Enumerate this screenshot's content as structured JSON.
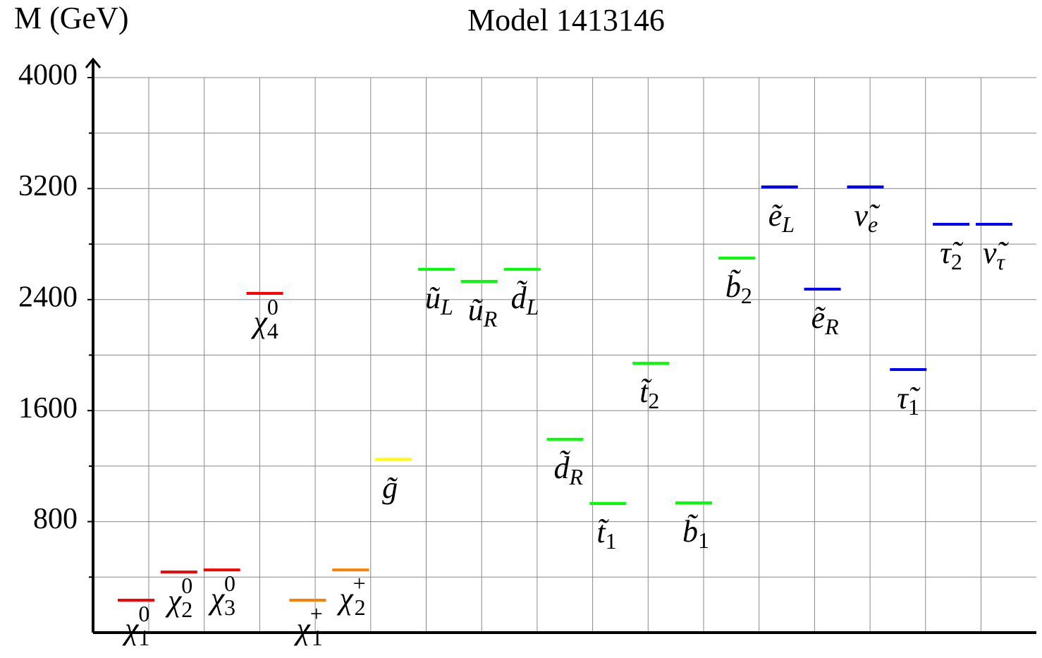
{
  "chart_data": {
    "type": "spectrum",
    "title": "Model 1413146",
    "ylabel": "M (GeV)",
    "ylim": [
      0,
      4000
    ],
    "yticks": [
      800,
      1600,
      2400,
      3200,
      4000
    ],
    "minor_yticks": [
      400,
      1200,
      2000,
      2800,
      3600
    ],
    "grid": true,
    "particles": [
      {
        "symbol": "χ",
        "sub": "1",
        "sup": "0",
        "color": "#ff0000",
        "value": 234
      },
      {
        "symbol": "χ",
        "sub": "2",
        "sup": "0",
        "color": "#ff0000",
        "value": 437
      },
      {
        "symbol": "χ",
        "sub": "3",
        "sup": "0",
        "color": "#ff0000",
        "value": 452
      },
      {
        "symbol": "χ",
        "sub": "4",
        "sup": "0",
        "color": "#ff0000",
        "value": 2445
      },
      {
        "symbol": "χ",
        "sub": "1",
        "sup": "+",
        "color": "#ff8000",
        "value": 234
      },
      {
        "symbol": "χ",
        "sub": "2",
        "sup": "+",
        "color": "#ff8000",
        "value": 452
      },
      {
        "symbol": "g̃",
        "color": "#ffff00",
        "value": 1250
      },
      {
        "symbol": "ũ",
        "sub": "L",
        "color": "#00ff00",
        "value": 2618
      },
      {
        "symbol": "ũ",
        "sub": "R",
        "color": "#00ff00",
        "value": 2531
      },
      {
        "symbol": "d̃",
        "sub": "L",
        "color": "#00ff00",
        "value": 2618
      },
      {
        "symbol": "d̃",
        "sub": "R",
        "color": "#00ff00",
        "value": 1393
      },
      {
        "symbol": "t̃",
        "sub": "1",
        "color": "#00ff00",
        "value": 930
      },
      {
        "symbol": "t̃",
        "sub": "2",
        "color": "#00ff00",
        "value": 1941
      },
      {
        "symbol": "b̃",
        "sub": "1",
        "color": "#00ff00",
        "value": 935
      },
      {
        "symbol": "b̃",
        "sub": "2",
        "color": "#00ff00",
        "value": 2699
      },
      {
        "symbol": "ẽ",
        "sub": "L",
        "color": "#0000ff",
        "value": 3212
      },
      {
        "symbol": "ẽ",
        "sub": "R",
        "color": "#0000ff",
        "value": 2475
      },
      {
        "symbol": "ν̃",
        "sub": "e",
        "color": "#0000ff",
        "value": 3212
      },
      {
        "symbol": "τ̃",
        "sub": "1",
        "color": "#0000ff",
        "value": 1896
      },
      {
        "symbol": "τ̃",
        "sub": "2",
        "color": "#0000ff",
        "value": 2943
      },
      {
        "symbol": "ν̃",
        "sub": "τ",
        "color": "#0000ff",
        "value": 2943
      }
    ]
  }
}
